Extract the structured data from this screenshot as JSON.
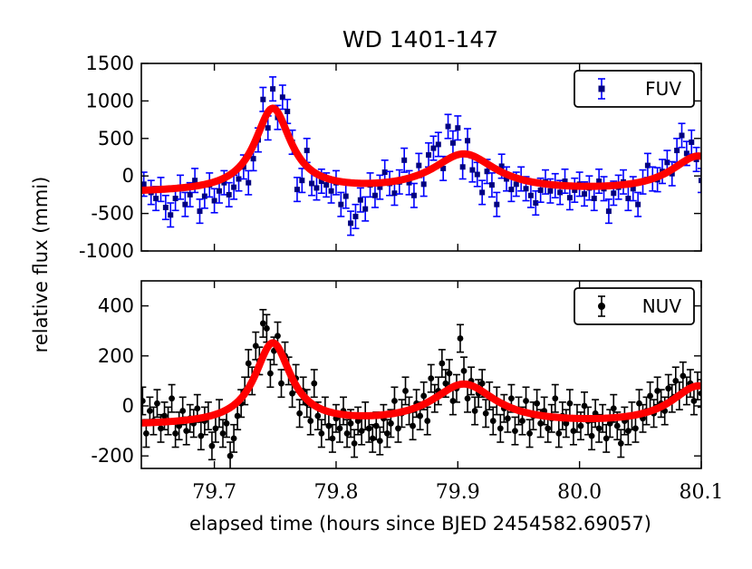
{
  "chart_data": {
    "title": "WD 1401-147",
    "xlabel": "elapsed time (hours since BJED 2454582.69057)",
    "ylabel": "relative flux (mmi)",
    "xlim": [
      79.64,
      80.1
    ],
    "xticks": [
      79.7,
      79.8,
      79.9,
      80.0,
      80.1
    ],
    "xtick_labels": [
      "79.7",
      "79.8",
      "79.9",
      "80.0",
      "80.1"
    ],
    "panels": [
      {
        "name": "FUV",
        "type": "scatter",
        "legend": "FUV",
        "legend_position": "top-right",
        "marker": "square",
        "marker_color": "#000080",
        "error_color": "#0000ff",
        "model_color": "#ff0000",
        "ylim": [
          -1000,
          1500
        ],
        "yticks": [
          1500,
          1000,
          500,
          0,
          -500,
          -1000
        ],
        "ytick_labels": [
          "1500",
          "1000",
          "500",
          "0",
          "-500",
          "-1000"
        ],
        "error": 160,
        "model": {
          "baseline": -230,
          "pulses": [
            {
              "t0": 79.748,
              "amp": 1110,
              "width": 0.018
            },
            {
              "t0": 79.905,
              "amp": 500,
              "width": 0.032
            },
            {
              "t0": 80.098,
              "amp": 480,
              "width": 0.028
            }
          ]
        },
        "points": [
          [
            79.642,
            -110
          ],
          [
            79.648,
            -220
          ],
          [
            79.652,
            -300
          ],
          [
            79.656,
            -180
          ],
          [
            79.66,
            -420
          ],
          [
            79.664,
            -520
          ],
          [
            79.668,
            -300
          ],
          [
            79.672,
            -150
          ],
          [
            79.676,
            -380
          ],
          [
            79.68,
            -250
          ],
          [
            79.684,
            -60
          ],
          [
            79.688,
            -470
          ],
          [
            79.692,
            -270
          ],
          [
            79.696,
            -120
          ],
          [
            79.7,
            -330
          ],
          [
            79.704,
            -200
          ],
          [
            79.708,
            -90
          ],
          [
            79.712,
            -250
          ],
          [
            79.716,
            -150
          ],
          [
            79.72,
            -40
          ],
          [
            79.724,
            120
          ],
          [
            79.728,
            -90
          ],
          [
            79.732,
            230
          ],
          [
            79.736,
            480
          ],
          [
            79.74,
            1020
          ],
          [
            79.744,
            640
          ],
          [
            79.748,
            1160
          ],
          [
            79.752,
            780
          ],
          [
            79.756,
            1050
          ],
          [
            79.76,
            860
          ],
          [
            79.764,
            450
          ],
          [
            79.768,
            -180
          ],
          [
            79.772,
            -60
          ],
          [
            79.776,
            340
          ],
          [
            79.78,
            -100
          ],
          [
            79.784,
            -160
          ],
          [
            79.788,
            -70
          ],
          [
            79.792,
            -120
          ],
          [
            79.796,
            -200
          ],
          [
            79.8,
            -90
          ],
          [
            79.804,
            -380
          ],
          [
            79.808,
            -270
          ],
          [
            79.812,
            -630
          ],
          [
            79.816,
            -540
          ],
          [
            79.82,
            -320
          ],
          [
            79.824,
            -440
          ],
          [
            79.828,
            -120
          ],
          [
            79.832,
            -260
          ],
          [
            79.836,
            -150
          ],
          [
            79.84,
            50
          ],
          [
            79.844,
            -100
          ],
          [
            79.848,
            -230
          ],
          [
            79.852,
            -80
          ],
          [
            79.856,
            210
          ],
          [
            79.86,
            -90
          ],
          [
            79.864,
            -260
          ],
          [
            79.868,
            140
          ],
          [
            79.872,
            -110
          ],
          [
            79.876,
            280
          ],
          [
            79.88,
            370
          ],
          [
            79.884,
            420
          ],
          [
            79.888,
            100
          ],
          [
            79.892,
            660
          ],
          [
            79.896,
            440
          ],
          [
            79.9,
            640
          ],
          [
            79.904,
            120
          ],
          [
            79.908,
            470
          ],
          [
            79.912,
            80
          ],
          [
            79.916,
            20
          ],
          [
            79.92,
            -220
          ],
          [
            79.924,
            60
          ],
          [
            79.928,
            -120
          ],
          [
            79.932,
            -380
          ],
          [
            79.936,
            130
          ],
          [
            79.94,
            -40
          ],
          [
            79.944,
            -180
          ],
          [
            79.948,
            -110
          ],
          [
            79.952,
            -40
          ],
          [
            79.956,
            -170
          ],
          [
            79.96,
            -260
          ],
          [
            79.964,
            -360
          ],
          [
            79.968,
            -190
          ],
          [
            79.972,
            -80
          ],
          [
            79.976,
            -200
          ],
          [
            79.98,
            -130
          ],
          [
            79.984,
            -220
          ],
          [
            79.988,
            -70
          ],
          [
            79.992,
            -290
          ],
          [
            79.996,
            -190
          ],
          [
            80.0,
            -110
          ],
          [
            80.004,
            -240
          ],
          [
            80.008,
            -160
          ],
          [
            80.012,
            -300
          ],
          [
            80.016,
            -70
          ],
          [
            80.02,
            -170
          ],
          [
            80.024,
            -470
          ],
          [
            80.028,
            -230
          ],
          [
            80.032,
            -150
          ],
          [
            80.036,
            -80
          ],
          [
            80.04,
            -300
          ],
          [
            80.044,
            -170
          ],
          [
            80.048,
            -380
          ],
          [
            80.052,
            -80
          ],
          [
            80.056,
            140
          ],
          [
            80.06,
            -40
          ],
          [
            80.064,
            -50
          ],
          [
            80.068,
            60
          ],
          [
            80.072,
            180
          ],
          [
            80.076,
            30
          ],
          [
            80.08,
            340
          ],
          [
            80.084,
            540
          ],
          [
            80.088,
            300
          ],
          [
            80.092,
            450
          ],
          [
            80.096,
            220
          ],
          [
            80.1,
            -60
          ]
        ]
      },
      {
        "name": "NUV",
        "type": "scatter",
        "legend": "NUV",
        "legend_position": "top-right",
        "marker": "circle",
        "marker_color": "#000000",
        "error_color": "#000000",
        "model_color": "#ff0000",
        "ylim": [
          -250,
          500
        ],
        "yticks": [
          400,
          200,
          0,
          -200
        ],
        "ytick_labels": [
          "400",
          "200",
          "0",
          "-200"
        ],
        "error": 55,
        "model": {
          "baseline": -80,
          "pulses": [
            {
              "t0": 79.748,
              "amp": 325,
              "width": 0.018
            },
            {
              "t0": 79.905,
              "amp": 160,
              "width": 0.032
            },
            {
              "t0": 80.098,
              "amp": 155,
              "width": 0.028
            }
          ]
        },
        "points": [
          [
            79.641,
            20
          ],
          [
            79.644,
            -110
          ],
          [
            79.647,
            -20
          ],
          [
            79.65,
            -60
          ],
          [
            79.653,
            10
          ],
          [
            79.656,
            -90
          ],
          [
            79.659,
            -40
          ],
          [
            79.662,
            -60
          ],
          [
            79.665,
            30
          ],
          [
            79.668,
            -110
          ],
          [
            79.671,
            -80
          ],
          [
            79.674,
            -20
          ],
          [
            79.677,
            -100
          ],
          [
            79.68,
            -50
          ],
          [
            79.683,
            -70
          ],
          [
            79.686,
            -10
          ],
          [
            79.689,
            -120
          ],
          [
            79.692,
            -60
          ],
          [
            79.695,
            -40
          ],
          [
            79.698,
            -160
          ],
          [
            79.701,
            -90
          ],
          [
            79.704,
            -30
          ],
          [
            79.707,
            -110
          ],
          [
            79.71,
            -70
          ],
          [
            79.713,
            -200
          ],
          [
            79.716,
            -130
          ],
          [
            79.719,
            -40
          ],
          [
            79.722,
            10
          ],
          [
            79.725,
            60
          ],
          [
            79.728,
            170
          ],
          [
            79.731,
            100
          ],
          [
            79.734,
            240
          ],
          [
            79.737,
            180
          ],
          [
            79.74,
            330
          ],
          [
            79.743,
            310
          ],
          [
            79.746,
            130
          ],
          [
            79.749,
            220
          ],
          [
            79.752,
            280
          ],
          [
            79.755,
            90
          ],
          [
            79.758,
            200
          ],
          [
            79.761,
            140
          ],
          [
            79.764,
            50
          ],
          [
            79.767,
            110
          ],
          [
            79.77,
            -30
          ],
          [
            79.773,
            60
          ],
          [
            79.776,
            10
          ],
          [
            79.779,
            -60
          ],
          [
            79.782,
            90
          ],
          [
            79.785,
            -40
          ],
          [
            79.788,
            -110
          ],
          [
            79.791,
            -20
          ],
          [
            79.794,
            -80
          ],
          [
            79.797,
            -130
          ],
          [
            79.8,
            -50
          ],
          [
            79.803,
            -90
          ],
          [
            79.806,
            -20
          ],
          [
            79.809,
            -110
          ],
          [
            79.812,
            -70
          ],
          [
            79.815,
            -150
          ],
          [
            79.818,
            -60
          ],
          [
            79.821,
            -100
          ],
          [
            79.824,
            -40
          ],
          [
            79.827,
            -90
          ],
          [
            79.83,
            -130
          ],
          [
            79.833,
            -80
          ],
          [
            79.836,
            -140
          ],
          [
            79.839,
            -50
          ],
          [
            79.842,
            -110
          ],
          [
            79.845,
            -70
          ],
          [
            79.848,
            20
          ],
          [
            79.851,
            -90
          ],
          [
            79.854,
            -30
          ],
          [
            79.857,
            60
          ],
          [
            79.86,
            -20
          ],
          [
            79.863,
            -80
          ],
          [
            79.866,
            10
          ],
          [
            79.869,
            -40
          ],
          [
            79.872,
            40
          ],
          [
            79.875,
            -60
          ],
          [
            79.878,
            110
          ],
          [
            79.881,
            30
          ],
          [
            79.884,
            60
          ],
          [
            79.887,
            170
          ],
          [
            79.89,
            90
          ],
          [
            79.893,
            130
          ],
          [
            79.896,
            20
          ],
          [
            79.899,
            70
          ],
          [
            79.902,
            270
          ],
          [
            79.905,
            140
          ],
          [
            79.908,
            30
          ],
          [
            79.911,
            100
          ],
          [
            79.914,
            -20
          ],
          [
            79.917,
            50
          ],
          [
            79.92,
            90
          ],
          [
            79.923,
            -30
          ],
          [
            79.926,
            40
          ],
          [
            79.929,
            -60
          ],
          [
            79.932,
            20
          ],
          [
            79.935,
            -90
          ],
          [
            79.938,
            -10
          ],
          [
            79.941,
            -50
          ],
          [
            79.944,
            30
          ],
          [
            79.947,
            -100
          ],
          [
            79.95,
            -20
          ],
          [
            79.953,
            -60
          ],
          [
            79.956,
            20
          ],
          [
            79.959,
            -110
          ],
          [
            79.962,
            -40
          ],
          [
            79.965,
            10
          ],
          [
            79.968,
            -70
          ],
          [
            79.971,
            -20
          ],
          [
            79.974,
            -90
          ],
          [
            79.977,
            -50
          ],
          [
            79.98,
            30
          ],
          [
            79.983,
            -110
          ],
          [
            79.986,
            -40
          ],
          [
            79.989,
            -70
          ],
          [
            79.992,
            10
          ],
          [
            79.995,
            -100
          ],
          [
            79.998,
            -50
          ],
          [
            80.001,
            -80
          ],
          [
            80.004,
            0
          ],
          [
            80.007,
            -60
          ],
          [
            80.01,
            -120
          ],
          [
            80.013,
            -30
          ],
          [
            80.016,
            -90
          ],
          [
            80.019,
            -50
          ],
          [
            80.022,
            -130
          ],
          [
            80.025,
            -70
          ],
          [
            80.028,
            -10
          ],
          [
            80.031,
            -80
          ],
          [
            80.034,
            -150
          ],
          [
            80.037,
            -60
          ],
          [
            80.04,
            -100
          ],
          [
            80.043,
            -40
          ],
          [
            80.046,
            -90
          ],
          [
            80.049,
            10
          ],
          [
            80.052,
            -50
          ],
          [
            80.055,
            -20
          ],
          [
            80.058,
            40
          ],
          [
            80.061,
            -30
          ],
          [
            80.064,
            60
          ],
          [
            80.067,
            10
          ],
          [
            80.07,
            -20
          ],
          [
            80.073,
            70
          ],
          [
            80.076,
            30
          ],
          [
            80.079,
            100
          ],
          [
            80.082,
            40
          ],
          [
            80.085,
            120
          ],
          [
            80.088,
            60
          ],
          [
            80.091,
            90
          ],
          [
            80.094,
            20
          ],
          [
            80.097,
            80
          ],
          [
            80.1,
            50
          ]
        ]
      }
    ]
  }
}
